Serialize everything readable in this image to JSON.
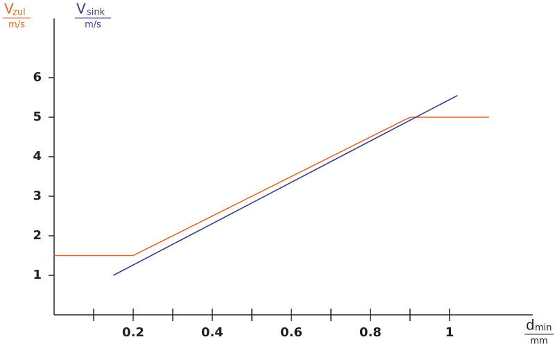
{
  "chart_data": {
    "type": "line",
    "y_label": {
      "symbol": "V",
      "subscript": "zul",
      "unit": "m/s",
      "color": "#d9692a"
    },
    "y2_label": {
      "symbol": "V",
      "subscript": "sink",
      "unit": "m/s",
      "color": "#3b3a8e"
    },
    "x_label": {
      "symbol": "d",
      "subscript": "min",
      "unit": "mm"
    },
    "series": [
      {
        "name": "V zul",
        "color": "#d9692a",
        "x": [
          0,
          0.2,
          0.9,
          1.1
        ],
        "values": [
          1.5,
          1.5,
          5,
          5
        ]
      },
      {
        "name": "V sink",
        "color": "#3b3a8e",
        "x": [
          0.15,
          1.02
        ],
        "values": [
          1,
          5.55
        ]
      }
    ],
    "xlim": [
      0,
      1.21
    ],
    "ylim": [
      0,
      7.5
    ],
    "xticks": [
      0.2,
      0.4,
      0.6,
      0.8,
      1
    ],
    "xminorticks": [
      0.1,
      0.3,
      0.5,
      0.7,
      0.9
    ],
    "yticks": [
      1,
      2,
      3,
      4,
      5,
      6
    ]
  }
}
